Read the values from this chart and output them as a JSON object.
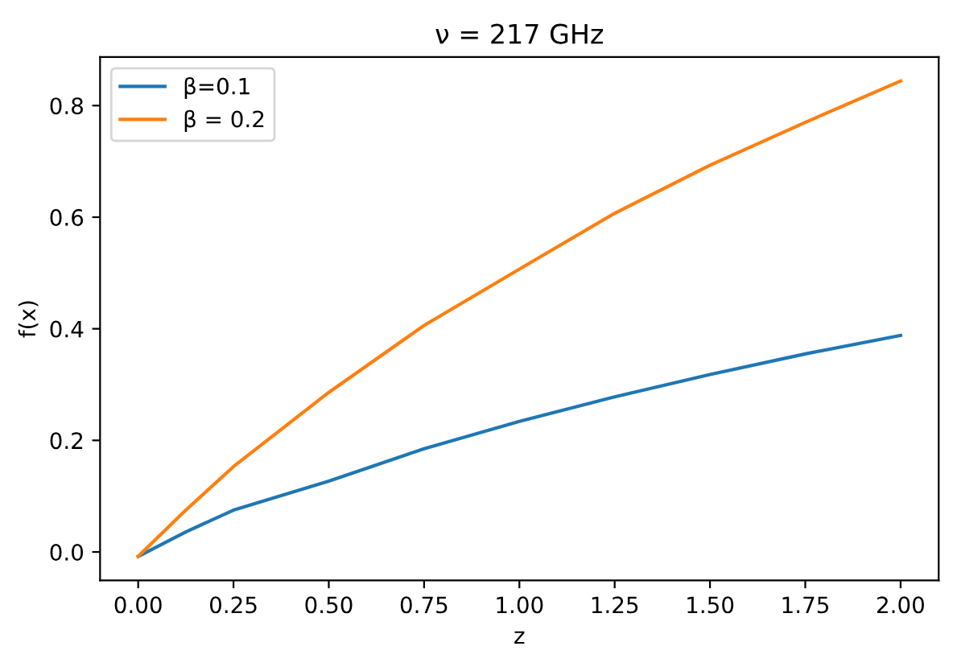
{
  "chart_data": {
    "type": "line",
    "title": "ν = 217 GHz",
    "xlabel": "z",
    "ylabel": "f(x)",
    "x": [
      0,
      0.125,
      0.25,
      0.5,
      0.75,
      1.0,
      1.25,
      1.5,
      1.75,
      2.0
    ],
    "series": [
      {
        "name": "β=0.1",
        "color": "#1f77b4",
        "values": [
          -0.008,
          0.036,
          0.075,
          0.127,
          0.185,
          0.234,
          0.278,
          0.318,
          0.355,
          0.388
        ]
      },
      {
        "name": "β = 0.2",
        "color": "#ff7f0e",
        "values": [
          -0.008,
          0.075,
          0.153,
          0.286,
          0.406,
          0.507,
          0.607,
          0.693,
          0.77,
          0.844
        ]
      }
    ],
    "xlim": [
      -0.1,
      2.1
    ],
    "ylim": [
      -0.051,
      0.887
    ],
    "xticks": [
      {
        "value": 0,
        "label": "0.00"
      },
      {
        "value": 0.25,
        "label": "0.25"
      },
      {
        "value": 0.5,
        "label": "0.50"
      },
      {
        "value": 0.75,
        "label": "0.75"
      },
      {
        "value": 1.0,
        "label": "1.00"
      },
      {
        "value": 1.25,
        "label": "1.25"
      },
      {
        "value": 1.5,
        "label": "1.50"
      },
      {
        "value": 1.75,
        "label": "1.75"
      },
      {
        "value": 2.0,
        "label": "2.00"
      }
    ],
    "yticks": [
      {
        "value": 0,
        "label": "0.0"
      },
      {
        "value": 0.2,
        "label": "0.2"
      },
      {
        "value": 0.4,
        "label": "0.4"
      },
      {
        "value": 0.6,
        "label": "0.6"
      },
      {
        "value": 0.8,
        "label": "0.8"
      }
    ],
    "legend": "top left",
    "grid": false,
    "marker": "none",
    "line_style": "solid"
  }
}
